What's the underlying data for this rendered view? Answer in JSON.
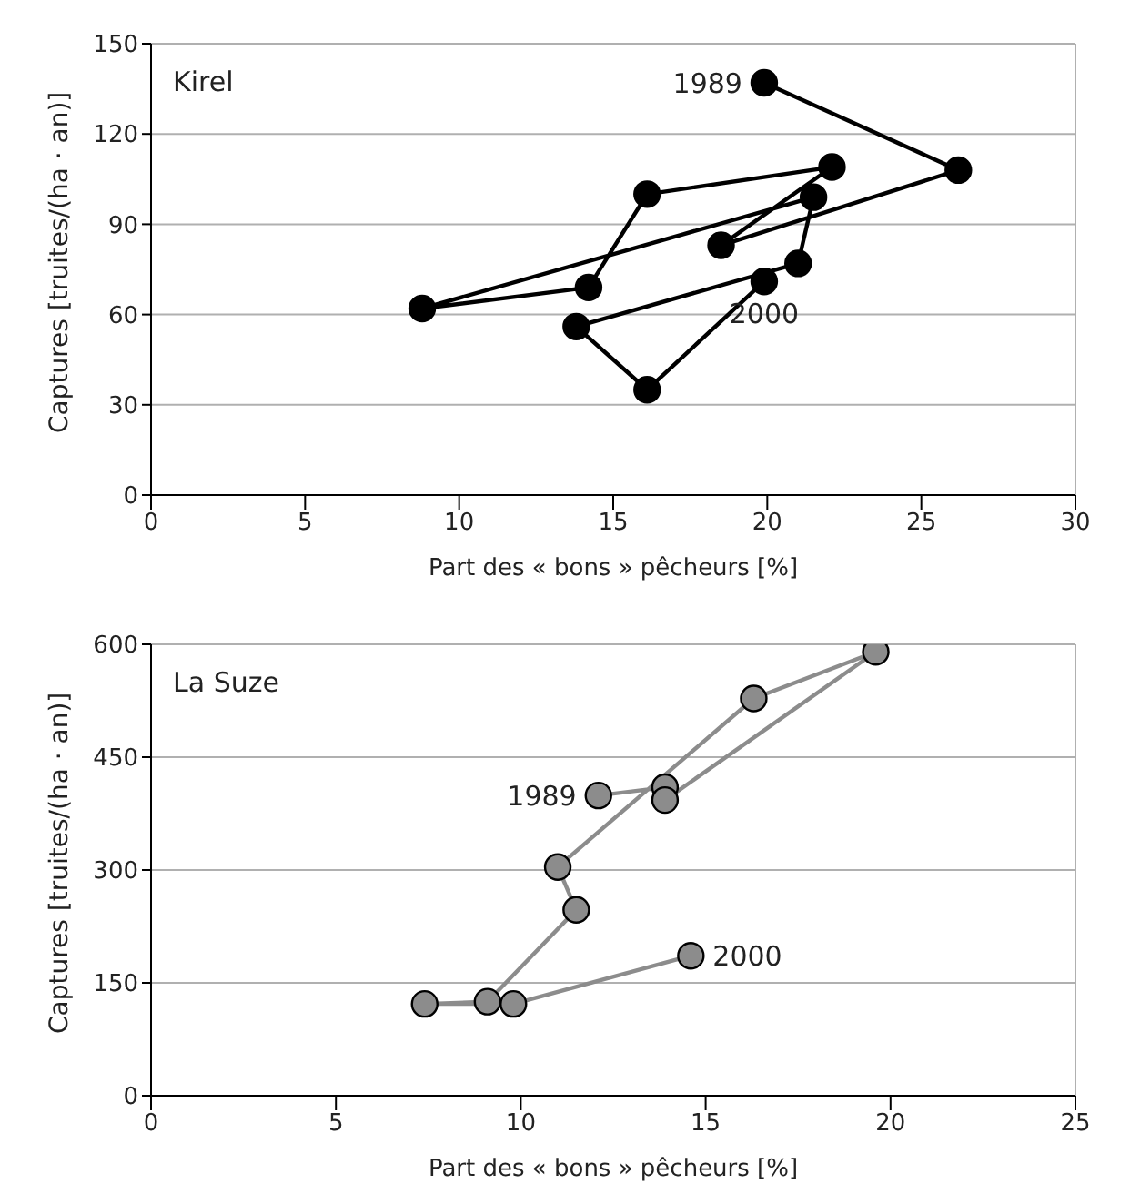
{
  "chart_data": [
    {
      "type": "line",
      "xlabel": "Part des « bons » pêcheurs [%]",
      "ylabel": "Captures [truites/(ha · an)]",
      "annotations": [
        "Kirel",
        {
          "text": "1989",
          "x": 19.9,
          "y": 137
        },
        {
          "text": "2000",
          "x": 19.9,
          "y": 71
        }
      ],
      "xlim": [
        0,
        30
      ],
      "xticks": [
        0,
        5,
        10,
        15,
        20,
        25,
        30
      ],
      "ylim": [
        0,
        150
      ],
      "yticks": [
        0,
        30,
        60,
        90,
        120,
        150
      ],
      "grid": "y",
      "marker": "circle",
      "line_style": "solid",
      "series": [
        {
          "color": "#000000",
          "x": [
            19.9,
            26.2,
            18.5,
            22.1,
            16.1,
            14.2,
            8.8,
            21.5,
            21.0,
            13.8,
            16.1,
            19.9
          ],
          "values": [
            137,
            108,
            83,
            109,
            100,
            69,
            62,
            99,
            77,
            56,
            35,
            71
          ]
        }
      ]
    },
    {
      "type": "line",
      "xlabel": "Part des « bons » pêcheurs [%]",
      "ylabel": "Captures [truites/(ha · an)]",
      "annotations": [
        "La Suze",
        {
          "text": "1989",
          "x": 12.1,
          "y": 399
        },
        {
          "text": "2000",
          "x": 14.6,
          "y": 186
        }
      ],
      "xlim": [
        0,
        25
      ],
      "xticks": [
        0,
        5,
        10,
        15,
        20,
        25
      ],
      "ylim": [
        0,
        600
      ],
      "yticks": [
        0,
        150,
        300,
        450,
        600
      ],
      "grid": "y",
      "marker": "circle",
      "line_style": "solid",
      "series": [
        {
          "color": "#8c8c8c",
          "x": [
            12.1,
            13.9,
            13.9,
            19.6,
            16.3,
            11.0,
            11.5,
            9.1,
            7.4,
            9.8,
            14.6
          ],
          "values": [
            399,
            410,
            393,
            590,
            528,
            304,
            247,
            125,
            122,
            122,
            186
          ]
        }
      ]
    }
  ]
}
